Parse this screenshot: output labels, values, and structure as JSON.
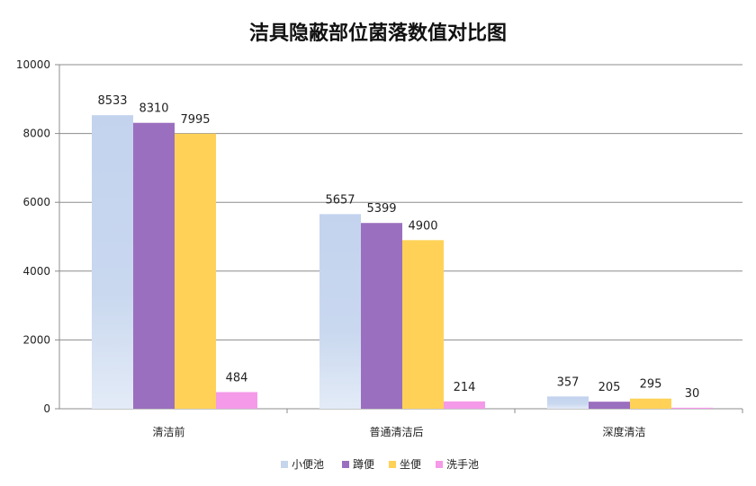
{
  "chart_data": {
    "type": "bar",
    "title": "洁具隐蔽部位菌落数值对比图",
    "categories": [
      "清洁前",
      "普通清洁后",
      "深度清洁"
    ],
    "series": [
      {
        "name": "小便池",
        "values": [
          8533,
          5657,
          357
        ],
        "color": "#c5d5ec"
      },
      {
        "name": "蹲便",
        "values": [
          8310,
          5399,
          205
        ],
        "color": "#9b6fbf"
      },
      {
        "name": "坐便",
        "values": [
          7995,
          4900,
          295
        ],
        "color": "#ffd257"
      },
      {
        "name": "洗手池",
        "values": [
          484,
          214,
          30
        ],
        "color": "#f59ae9"
      }
    ],
    "yticks": [
      0,
      2000,
      4000,
      6000,
      8000,
      10000
    ],
    "ylim": [
      0,
      10000
    ],
    "grid": true,
    "legend_position": "bottom"
  }
}
